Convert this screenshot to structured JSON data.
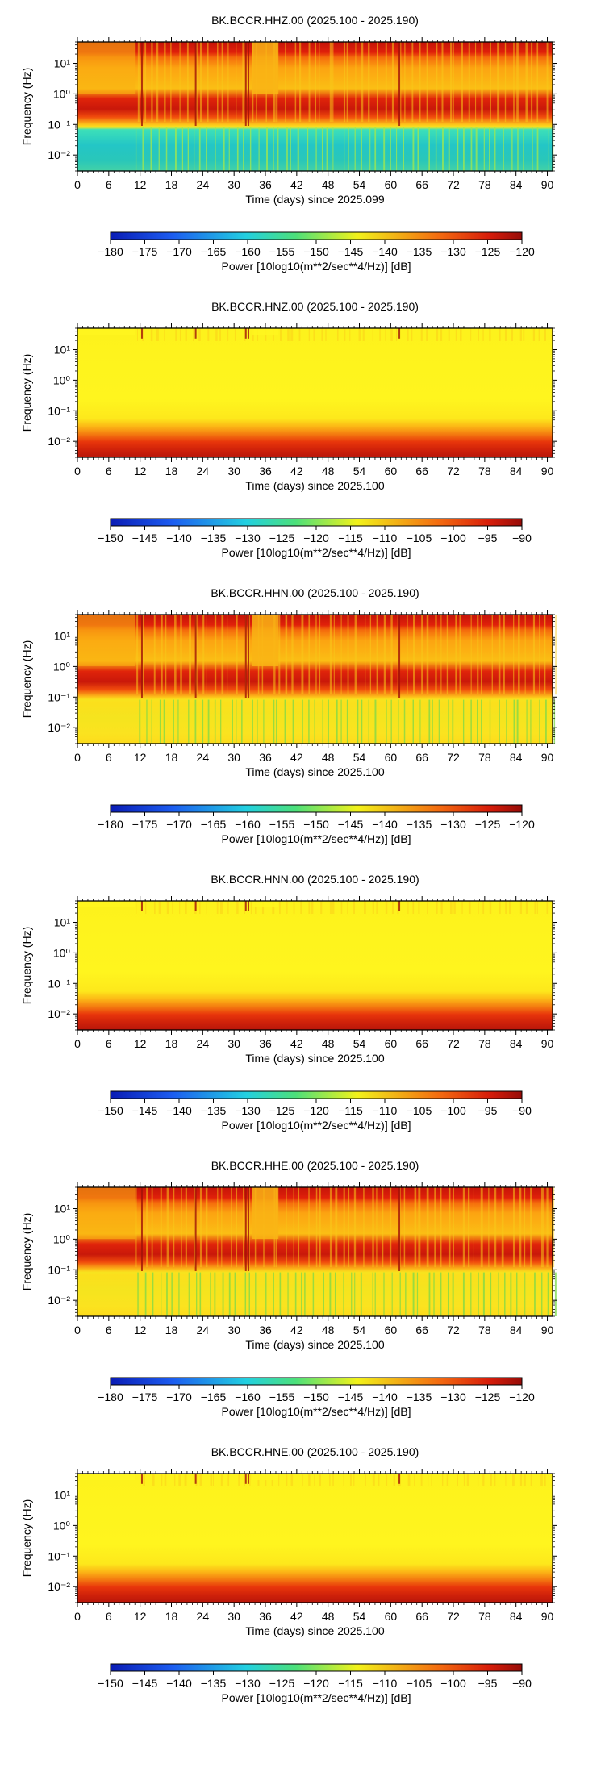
{
  "chart_data": [
    {
      "type": "heatmap",
      "title": "BK.BCCR.HHZ.00 (2025.100 - 2025.190)",
      "xlabel": "Time (days) since 2025.099",
      "ylabel": "Frequency (Hz)",
      "x_ticks": [
        "0",
        "6",
        "12",
        "18",
        "24",
        "30",
        "36",
        "42",
        "48",
        "54",
        "60",
        "66",
        "72",
        "78",
        "84",
        "90"
      ],
      "xlim": [
        0,
        91
      ],
      "y_ticks": [
        "10⁻²",
        "10⁻¹",
        "10⁰",
        "10¹"
      ],
      "ylim_hz": [
        0.003,
        50
      ],
      "y_scale": "log",
      "colorbar": {
        "label": "Power [10log10(m**2/sec**4/Hz)] [dB]",
        "ticks": [
          "−180",
          "−175",
          "−170",
          "−165",
          "−160",
          "−155",
          "−150",
          "−145",
          "−140",
          "−135",
          "−130",
          "−125",
          "−120"
        ],
        "range": [
          -180,
          -120
        ],
        "colormap": "jet"
      },
      "pattern": {
        "style": "vertical",
        "high_band": "dark red",
        "mid_band": "red microseism near 0.2 Hz",
        "low_band": "cyan/green below 0.07 Hz"
      }
    },
    {
      "type": "heatmap",
      "title": "BK.BCCR.HNZ.00 (2025.100 - 2025.190)",
      "xlabel": "Time (days) since 2025.100",
      "ylabel": "Frequency (Hz)",
      "x_ticks": [
        "0",
        "6",
        "12",
        "18",
        "24",
        "30",
        "36",
        "42",
        "48",
        "54",
        "60",
        "66",
        "72",
        "78",
        "84",
        "90"
      ],
      "xlim": [
        0,
        91
      ],
      "y_ticks": [
        "10⁻²",
        "10⁻¹",
        "10⁰",
        "10¹"
      ],
      "ylim_hz": [
        0.003,
        50
      ],
      "y_scale": "log",
      "colorbar": {
        "label": "Power [10log10(m**2/sec**4/Hz)] [dB]",
        "ticks": [
          "−150",
          "−145",
          "−140",
          "−135",
          "−130",
          "−125",
          "−120",
          "−115",
          "−110",
          "−105",
          "−100",
          "−95",
          "−90"
        ],
        "range": [
          -150,
          -90
        ],
        "colormap": "jet"
      },
      "pattern": {
        "style": "mostly yellow",
        "low_band": "orange to red below 0.02 Hz"
      }
    },
    {
      "type": "heatmap",
      "title": "BK.BCCR.HHN.00 (2025.100 - 2025.190)",
      "xlabel": "Time (days) since 2025.100",
      "ylabel": "Frequency (Hz)",
      "x_ticks": [
        "0",
        "6",
        "12",
        "18",
        "24",
        "30",
        "36",
        "42",
        "48",
        "54",
        "60",
        "66",
        "72",
        "78",
        "84",
        "90"
      ],
      "xlim": [
        0,
        91
      ],
      "y_ticks": [
        "10⁻²",
        "10⁻¹",
        "10⁰",
        "10¹"
      ],
      "ylim_hz": [
        0.003,
        50
      ],
      "y_scale": "log",
      "colorbar": {
        "label": "Power [10log10(m**2/sec**4/Hz)] [dB]",
        "ticks": [
          "−180",
          "−175",
          "−170",
          "−165",
          "−160",
          "−155",
          "−150",
          "−145",
          "−140",
          "−135",
          "−130",
          "−125",
          "−120"
        ],
        "range": [
          -180,
          -120
        ],
        "colormap": "jet"
      },
      "pattern": {
        "style": "vertical",
        "high_band": "dark red",
        "mid_band": "red microseism near 0.2 Hz",
        "low_band": "yellow with green streaks"
      }
    },
    {
      "type": "heatmap",
      "title": "BK.BCCR.HNN.00 (2025.100 - 2025.190)",
      "xlabel": "Time (days) since 2025.100",
      "ylabel": "Frequency (Hz)",
      "x_ticks": [
        "0",
        "6",
        "12",
        "18",
        "24",
        "30",
        "36",
        "42",
        "48",
        "54",
        "60",
        "66",
        "72",
        "78",
        "84",
        "90"
      ],
      "xlim": [
        0,
        91
      ],
      "y_ticks": [
        "10⁻²",
        "10⁻¹",
        "10⁰",
        "10¹"
      ],
      "ylim_hz": [
        0.003,
        50
      ],
      "y_scale": "log",
      "colorbar": {
        "label": "Power [10log10(m**2/sec**4/Hz)] [dB]",
        "ticks": [
          "−150",
          "−145",
          "−140",
          "−135",
          "−130",
          "−125",
          "−120",
          "−115",
          "−110",
          "−105",
          "−100",
          "−95",
          "−90"
        ],
        "range": [
          -150,
          -90
        ],
        "colormap": "jet"
      },
      "pattern": {
        "style": "mostly yellow",
        "low_band": "orange to red below 0.02 Hz"
      }
    },
    {
      "type": "heatmap",
      "title": "BK.BCCR.HHE.00 (2025.100 - 2025.190)",
      "xlabel": "Time (days) since 2025.100",
      "ylabel": "Frequency (Hz)",
      "x_ticks": [
        "0",
        "6",
        "12",
        "18",
        "24",
        "30",
        "36",
        "42",
        "48",
        "54",
        "60",
        "66",
        "72",
        "78",
        "84",
        "90"
      ],
      "xlim": [
        0,
        91
      ],
      "y_ticks": [
        "10⁻²",
        "10⁻¹",
        "10⁰",
        "10¹"
      ],
      "ylim_hz": [
        0.003,
        50
      ],
      "y_scale": "log",
      "colorbar": {
        "label": "Power [10log10(m**2/sec**4/Hz)] [dB]",
        "ticks": [
          "−180",
          "−175",
          "−170",
          "−165",
          "−160",
          "−155",
          "−150",
          "−145",
          "−140",
          "−135",
          "−130",
          "−125",
          "−120"
        ],
        "range": [
          -180,
          -120
        ],
        "colormap": "jet"
      },
      "pattern": {
        "style": "vertical",
        "high_band": "dark red",
        "mid_band": "red microseism near 0.2 Hz",
        "low_band": "yellow with green streaks"
      }
    },
    {
      "type": "heatmap",
      "title": "BK.BCCR.HNE.00 (2025.100 - 2025.190)",
      "xlabel": "Time (days) since 2025.100",
      "ylabel": "Frequency (Hz)",
      "x_ticks": [
        "0",
        "6",
        "12",
        "18",
        "24",
        "30",
        "36",
        "42",
        "48",
        "54",
        "60",
        "66",
        "72",
        "78",
        "84",
        "90"
      ],
      "xlim": [
        0,
        91
      ],
      "y_ticks": [
        "10⁻²",
        "10⁻¹",
        "10⁰",
        "10¹"
      ],
      "ylim_hz": [
        0.003,
        50
      ],
      "y_scale": "log",
      "colorbar": {
        "label": "Power [10log10(m**2/sec**4/Hz)] [dB]",
        "ticks": [
          "−150",
          "−145",
          "−140",
          "−135",
          "−130",
          "−125",
          "−120",
          "−115",
          "−110",
          "−105",
          "−100",
          "−95",
          "−90"
        ],
        "range": [
          -150,
          -90
        ],
        "colormap": "jet"
      },
      "pattern": {
        "style": "mostly yellow",
        "low_band": "orange to red below 0.02 Hz"
      }
    }
  ]
}
